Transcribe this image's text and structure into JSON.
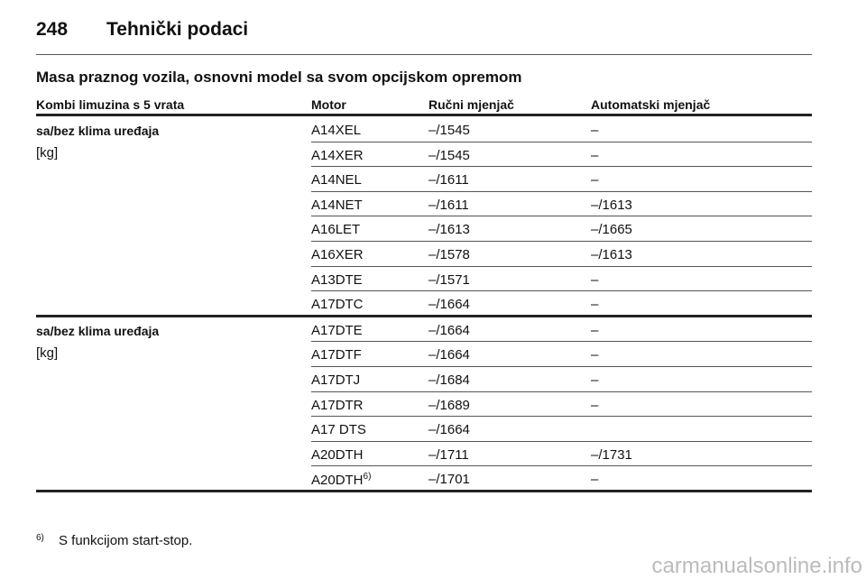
{
  "header": {
    "page_number": "248",
    "title": "Tehnički podaci"
  },
  "section_title": "Masa praznog vozila, osnovni model sa svom opcijskom opremom",
  "table": {
    "columns": [
      "Kombi limuzina s 5 vrata",
      "Motor",
      "Ručni mjenjač",
      "Automatski mjenjač"
    ],
    "groups": [
      {
        "label": "sa/bez klima uređaja",
        "unit": "[kg]",
        "rows": [
          {
            "motor": "A14XEL",
            "manual": "–/1545",
            "auto": "–"
          },
          {
            "motor": "A14XER",
            "manual": "–/1545",
            "auto": "–"
          },
          {
            "motor": "A14NEL",
            "manual": "–/1611",
            "auto": "–"
          },
          {
            "motor": "A14NET",
            "manual": "–/1611",
            "auto": "–/1613"
          },
          {
            "motor": "A16LET",
            "manual": "–/1613",
            "auto": "–/1665"
          },
          {
            "motor": "A16XER",
            "manual": "–/1578",
            "auto": "–/1613"
          },
          {
            "motor": "A13DTE",
            "manual": "–/1571",
            "auto": "–"
          },
          {
            "motor": "A17DTC",
            "manual": "–/1664",
            "auto": "–"
          }
        ]
      },
      {
        "label": "sa/bez klima uređaja",
        "unit": "[kg]",
        "rows": [
          {
            "motor": "A17DTE",
            "manual": "–/1664",
            "auto": "–"
          },
          {
            "motor": "A17DTF",
            "manual": "–/1664",
            "auto": "–"
          },
          {
            "motor": "A17DTJ",
            "manual": "–/1684",
            "auto": "–"
          },
          {
            "motor": "A17DTR",
            "manual": "–/1689",
            "auto": "–"
          },
          {
            "motor": "A17 DTS",
            "manual": "–/1664"
          },
          {
            "motor": "A20DTH",
            "manual": "–/1711",
            "auto": "–/1731"
          },
          {
            "motor": "A20DTH",
            "sup": "6)",
            "manual": "–/1701",
            "auto": "–"
          }
        ]
      }
    ]
  },
  "footnote": {
    "marker": "6)",
    "text": "S funkcijom start-stop."
  },
  "watermark": "carmanualsonline.info"
}
